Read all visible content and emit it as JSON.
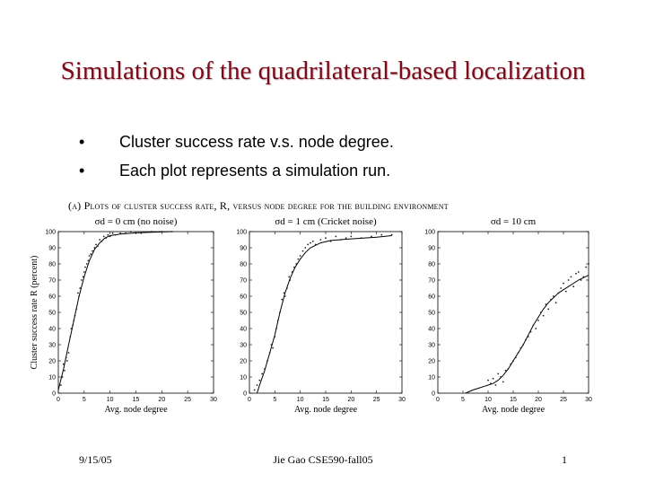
{
  "slide": {
    "title": "Simulations of the quadrilateral-based localization",
    "bullets": [
      "Cluster success rate v.s. node degree.",
      "Each plot represents a simulation run."
    ],
    "caption": "(a) Plots of cluster success rate, R, versus node degree for the building environment",
    "footer": {
      "date": "9/15/05",
      "center": "Jie Gao CSE590-fall05",
      "page": "1"
    }
  },
  "chart_data": [
    {
      "type": "scatter",
      "title": "σd = 0 cm (no noise)",
      "xlabel": "Avg. node degree",
      "ylabel": "Cluster success rate R (percent)",
      "xlim": [
        0,
        30
      ],
      "ylim": [
        0,
        100
      ],
      "xticks": [
        0,
        5,
        10,
        15,
        20,
        25,
        30
      ],
      "yticks": [
        0,
        10,
        20,
        30,
        40,
        50,
        60,
        70,
        80,
        90,
        100
      ],
      "fit": [
        [
          0,
          2
        ],
        [
          1,
          15
        ],
        [
          2,
          30
        ],
        [
          3,
          45
        ],
        [
          4,
          60
        ],
        [
          5,
          72
        ],
        [
          6,
          82
        ],
        [
          7,
          89
        ],
        [
          8,
          93
        ],
        [
          9,
          96
        ],
        [
          10,
          97.5
        ],
        [
          12,
          98.5
        ],
        [
          15,
          99.2
        ],
        [
          18,
          99.6
        ],
        [
          22,
          100
        ]
      ],
      "points": [
        [
          0.5,
          5
        ],
        [
          0.8,
          10
        ],
        [
          1,
          18
        ],
        [
          1.2,
          14
        ],
        [
          1.5,
          22
        ],
        [
          1.7,
          20
        ],
        [
          2,
          25
        ],
        [
          2.3,
          35
        ],
        [
          2.5,
          40
        ],
        [
          2.8,
          42
        ],
        [
          3,
          45
        ],
        [
          3.2,
          48
        ],
        [
          3.5,
          52
        ],
        [
          3.8,
          62
        ],
        [
          4,
          60
        ],
        [
          4.2,
          65
        ],
        [
          4.5,
          70
        ],
        [
          4.8,
          72
        ],
        [
          5,
          75
        ],
        [
          5.2,
          78
        ],
        [
          5.5,
          80
        ],
        [
          5.8,
          82
        ],
        [
          6,
          85
        ],
        [
          6.3,
          86
        ],
        [
          6.6,
          88
        ],
        [
          7,
          90
        ],
        [
          7.3,
          92
        ],
        [
          7.6,
          91
        ],
        [
          8,
          95
        ],
        [
          8.4,
          94
        ],
        [
          8.8,
          97
        ],
        [
          9.2,
          96
        ],
        [
          9.6,
          98
        ],
        [
          10,
          97
        ],
        [
          10.5,
          99
        ],
        [
          11,
          98
        ],
        [
          12,
          99
        ],
        [
          13,
          99
        ],
        [
          14,
          100
        ],
        [
          16,
          99
        ],
        [
          18,
          100
        ],
        [
          20,
          100
        ],
        [
          22,
          100
        ]
      ]
    },
    {
      "type": "scatter",
      "title": "σd = 1 cm (Cricket noise)",
      "xlabel": "Avg. node degree",
      "ylabel": "",
      "xlim": [
        0,
        30
      ],
      "ylim": [
        0,
        100
      ],
      "xticks": [
        0,
        5,
        10,
        15,
        20,
        25,
        30
      ],
      "yticks": [
        0,
        10,
        20,
        30,
        40,
        50,
        60,
        70,
        80,
        90,
        100
      ],
      "fit": [
        [
          1.5,
          0
        ],
        [
          2,
          5
        ],
        [
          3,
          14
        ],
        [
          4,
          25
        ],
        [
          5,
          36
        ],
        [
          6,
          50
        ],
        [
          7,
          62
        ],
        [
          8,
          71
        ],
        [
          9,
          78
        ],
        [
          10,
          83
        ],
        [
          11,
          87
        ],
        [
          12,
          90
        ],
        [
          14,
          93
        ],
        [
          16,
          94.5
        ],
        [
          20,
          95.5
        ],
        [
          25,
          96.5
        ],
        [
          28,
          97.5
        ]
      ],
      "points": [
        [
          1,
          2
        ],
        [
          1.5,
          5
        ],
        [
          2,
          8
        ],
        [
          2.5,
          12
        ],
        [
          3,
          15
        ],
        [
          3.5,
          20
        ],
        [
          4,
          25
        ],
        [
          4.3,
          30
        ],
        [
          4.6,
          28
        ],
        [
          5,
          35
        ],
        [
          5.3,
          40
        ],
        [
          5.6,
          45
        ],
        [
          6,
          50
        ],
        [
          6.4,
          58
        ],
        [
          6.8,
          62
        ],
        [
          7,
          60
        ],
        [
          7.4,
          65
        ],
        [
          7.8,
          72
        ],
        [
          8,
          70
        ],
        [
          8.4,
          75
        ],
        [
          8.8,
          78
        ],
        [
          9.2,
          80
        ],
        [
          9.6,
          83
        ],
        [
          10,
          85
        ],
        [
          10.5,
          88
        ],
        [
          11,
          90
        ],
        [
          11.5,
          92
        ],
        [
          12,
          93
        ],
        [
          12.5,
          94
        ],
        [
          13,
          92
        ],
        [
          14,
          95
        ],
        [
          15,
          96
        ],
        [
          16,
          94
        ],
        [
          17,
          97
        ],
        [
          18,
          95
        ],
        [
          19,
          96
        ],
        [
          20,
          97
        ],
        [
          22,
          96
        ],
        [
          24,
          97
        ],
        [
          26,
          98
        ],
        [
          28,
          98
        ]
      ]
    },
    {
      "type": "scatter",
      "title": "σd = 10 cm",
      "xlabel": "Avg. node degree",
      "ylabel": "",
      "xlim": [
        0,
        30
      ],
      "ylim": [
        0,
        100
      ],
      "xticks": [
        0,
        5,
        10,
        15,
        20,
        25,
        30
      ],
      "yticks": [
        0,
        10,
        20,
        30,
        40,
        50,
        60,
        70,
        80,
        90,
        100
      ],
      "fit": [
        [
          5.5,
          0
        ],
        [
          7,
          2
        ],
        [
          8,
          3
        ],
        [
          9,
          4
        ],
        [
          10,
          5
        ],
        [
          11,
          6
        ],
        [
          12,
          8
        ],
        [
          13,
          11
        ],
        [
          14,
          15
        ],
        [
          15,
          20
        ],
        [
          16,
          25
        ],
        [
          17,
          30
        ],
        [
          18,
          36
        ],
        [
          19,
          42
        ],
        [
          20,
          47
        ],
        [
          21,
          52
        ],
        [
          22,
          56
        ],
        [
          24,
          62
        ],
        [
          26,
          66
        ],
        [
          28,
          70
        ],
        [
          30,
          73
        ]
      ],
      "points": [
        [
          10,
          8
        ],
        [
          10.5,
          6
        ],
        [
          11,
          9
        ],
        [
          11.5,
          5
        ],
        [
          12,
          12
        ],
        [
          12.5,
          10
        ],
        [
          13,
          7
        ],
        [
          13.5,
          14
        ],
        [
          14,
          15
        ],
        [
          14.5,
          18
        ],
        [
          15,
          20
        ],
        [
          15.5,
          22
        ],
        [
          16,
          25
        ],
        [
          16.5,
          28
        ],
        [
          17,
          30
        ],
        [
          17.5,
          33
        ],
        [
          18,
          35
        ],
        [
          18.5,
          38
        ],
        [
          19,
          42
        ],
        [
          19.5,
          40
        ],
        [
          20,
          45
        ],
        [
          20.5,
          50
        ],
        [
          21,
          48
        ],
        [
          21.5,
          55
        ],
        [
          22,
          52
        ],
        [
          22.5,
          58
        ],
        [
          23,
          60
        ],
        [
          23.5,
          56
        ],
        [
          24,
          62
        ],
        [
          24.5,
          65
        ],
        [
          25,
          68
        ],
        [
          25.5,
          63
        ],
        [
          26,
          70
        ],
        [
          26.5,
          72
        ],
        [
          27,
          66
        ],
        [
          27.5,
          74
        ],
        [
          28,
          75
        ],
        [
          28.5,
          70
        ],
        [
          29,
          72
        ],
        [
          29.5,
          78
        ],
        [
          30,
          80
        ]
      ]
    }
  ]
}
